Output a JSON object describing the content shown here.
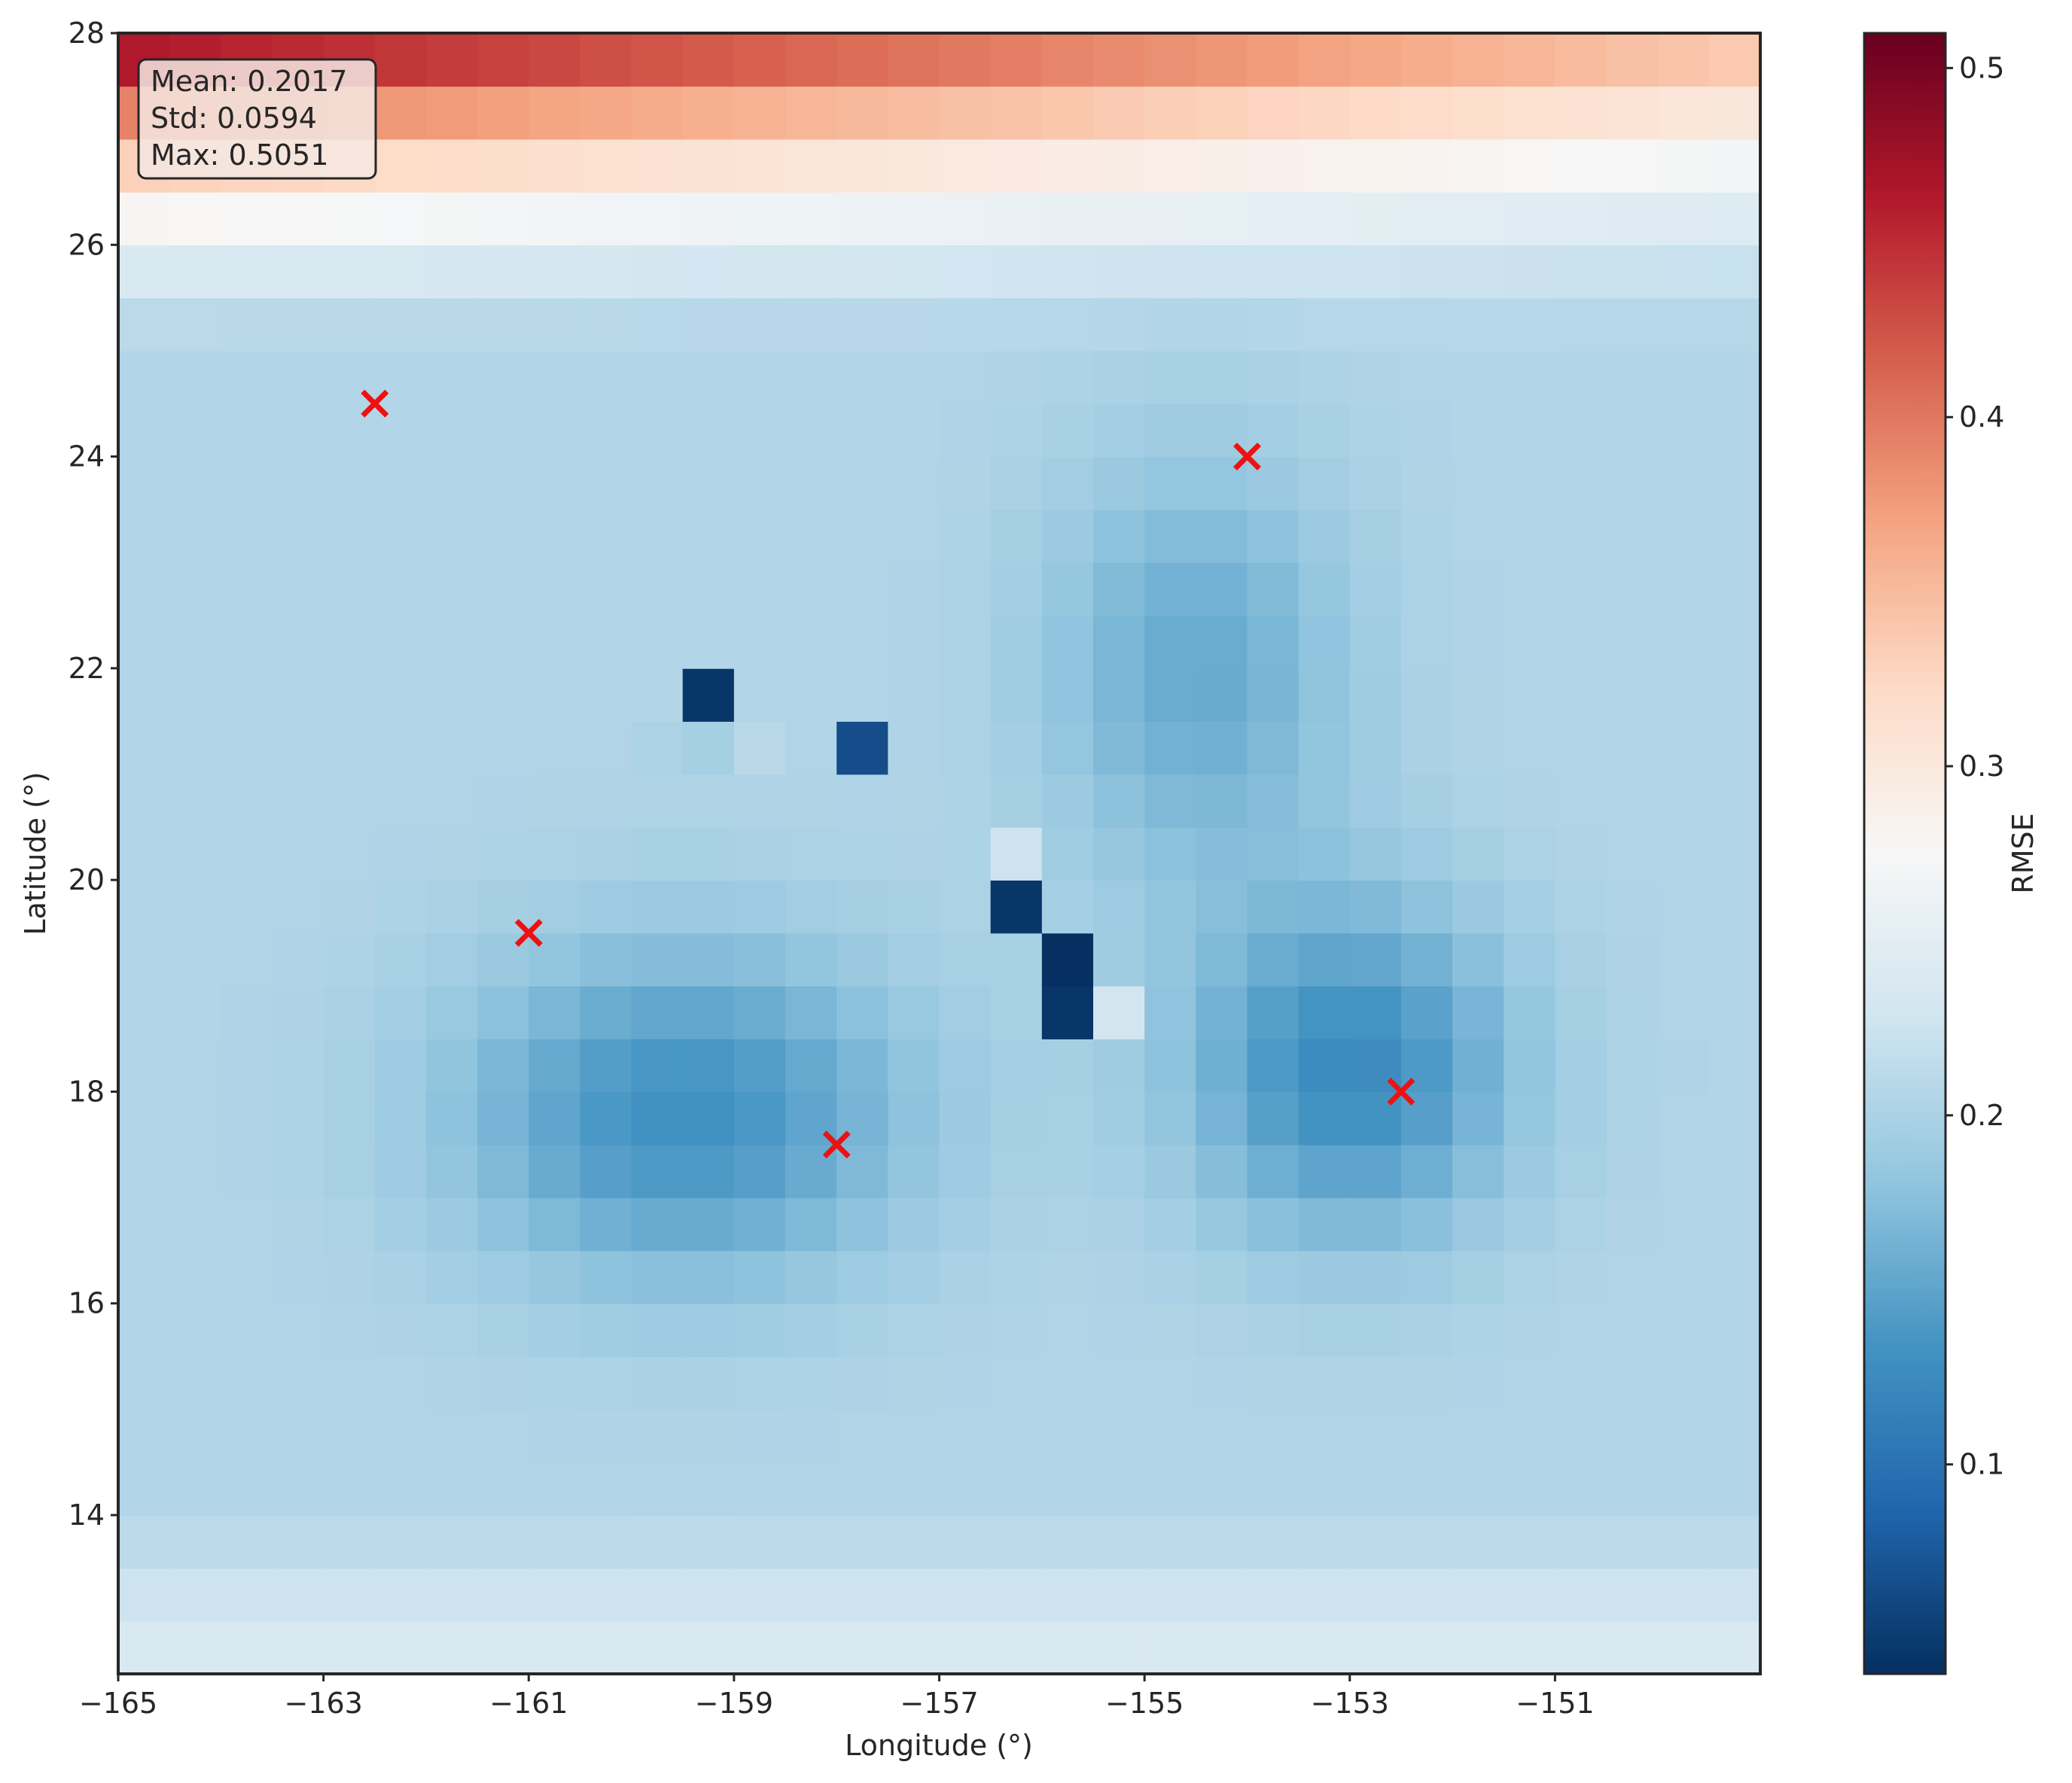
{
  "chart_data": {
    "type": "heatmap",
    "title": "",
    "xlabel": "Longitude (°)",
    "ylabel": "Latitude (°)",
    "xlim": [
      -165,
      -149
    ],
    "ylim": [
      12.5,
      28
    ],
    "cell_size_deg": 0.5,
    "xticks": [
      {
        "value": -165,
        "label": "−165"
      },
      {
        "value": -163,
        "label": "−163"
      },
      {
        "value": -161,
        "label": "−161"
      },
      {
        "value": -159,
        "label": "−159"
      },
      {
        "value": -157,
        "label": "−157"
      },
      {
        "value": -155,
        "label": "−155"
      },
      {
        "value": -153,
        "label": "−153"
      },
      {
        "value": -151,
        "label": "−151"
      }
    ],
    "yticks": [
      {
        "value": 28,
        "label": "28"
      },
      {
        "value": 26,
        "label": "26"
      },
      {
        "value": 24,
        "label": "24"
      },
      {
        "value": 22,
        "label": "22"
      },
      {
        "value": 20,
        "label": "20"
      },
      {
        "value": 18,
        "label": "18"
      },
      {
        "value": 16,
        "label": "16"
      },
      {
        "value": 14,
        "label": "14"
      }
    ],
    "colorbar": {
      "label": "RMSE",
      "colormap": "RdBu_r",
      "vmin": 0.04,
      "vmax": 0.51,
      "ticks": [
        {
          "value": 0.1,
          "label": "0.1"
        },
        {
          "value": 0.2,
          "label": "0.2"
        },
        {
          "value": 0.3,
          "label": "0.3"
        },
        {
          "value": 0.4,
          "label": "0.4"
        },
        {
          "value": 0.5,
          "label": "0.5"
        }
      ]
    },
    "stats": {
      "mean": "Mean: 0.2017",
      "std": "Std: 0.0594",
      "max": "Max: 0.5051"
    },
    "markers": [
      {
        "lon": -162.5,
        "lat": 24.5
      },
      {
        "lon": -154.0,
        "lat": 24.0
      },
      {
        "lon": -161.0,
        "lat": 19.5
      },
      {
        "lon": -158.0,
        "lat": 17.5
      },
      {
        "lon": -152.5,
        "lat": 18.0
      }
    ],
    "marker_color": "#ee1111",
    "low_cells": [
      {
        "lon": -159.25,
        "lat": 21.75,
        "value": 0.045
      },
      {
        "lon": -157.75,
        "lat": 21.25,
        "value": 0.065
      },
      {
        "lon": -156.25,
        "lat": 19.75,
        "value": 0.045
      },
      {
        "lon": -155.75,
        "lat": 19.25,
        "value": 0.04
      },
      {
        "lon": -155.75,
        "lat": 18.75,
        "value": 0.045
      }
    ],
    "high_cells": [
      {
        "lon": -156.25,
        "lat": 20.25,
        "value": 0.225
      },
      {
        "lon": -155.25,
        "lat": 18.75,
        "value": 0.23
      },
      {
        "lon": -159.75,
        "lat": 21.25,
        "value": 0.2
      },
      {
        "lon": -158.75,
        "lat": 21.25,
        "value": 0.21
      },
      {
        "lon": -159.25,
        "lat": 21.25,
        "value": 0.195
      }
    ],
    "field_model": {
      "base": 0.205,
      "north_gradient": {
        "start_lat": 25.0,
        "west_amp": 0.3,
        "east_amp": 0.15
      },
      "south_edge": {
        "start_lat": 14.0,
        "amp": 0.04
      },
      "troughs": [
        {
          "lon": -159.5,
          "lat": 17.8,
          "depth": 0.075,
          "sx": 2.2,
          "sy": 1.6
        },
        {
          "lon": -153.0,
          "lat": 18.2,
          "depth": 0.08,
          "sx": 1.6,
          "sy": 1.6
        },
        {
          "lon": -154.5,
          "lat": 22.0,
          "depth": 0.05,
          "sx": 1.5,
          "sy": 2.0
        }
      ]
    }
  }
}
